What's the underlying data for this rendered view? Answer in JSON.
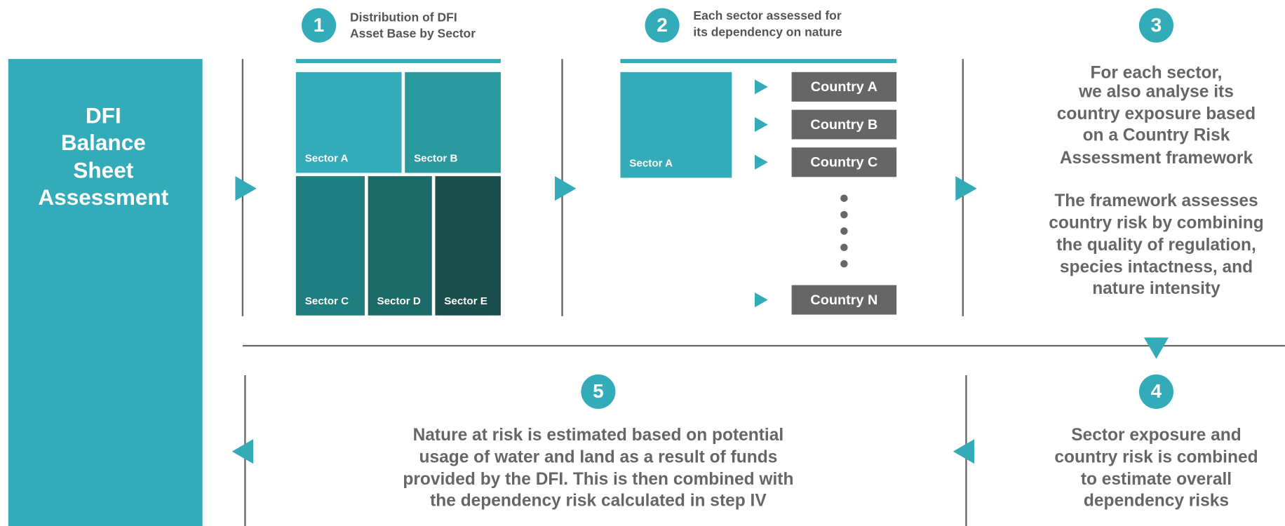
{
  "sidebar": {
    "lines": [
      "DFI",
      "Balance",
      "Sheet",
      "Assessment"
    ]
  },
  "steps": [
    {
      "number": 1,
      "title": [
        "Distribution of DFI",
        "Asset Base by Sector"
      ],
      "sectors": [
        "Sector A",
        "Sector B",
        "Sector C",
        "Sector D",
        "Sector E"
      ]
    },
    {
      "number": 2,
      "title": [
        "Each sector assessed for",
        "its dependency on nature"
      ],
      "sector": "Sector A",
      "countries": [
        "Country A",
        "Country B",
        "Country C",
        "Country N"
      ]
    },
    {
      "number": 3,
      "paragraphs": [
        [
          "For each sector,",
          "we also analyse its",
          "country exposure based",
          "on a Country Risk",
          "Assessment framework"
        ],
        [
          "The framework assesses",
          "country risk by combining",
          "the quality of regulation,",
          "species intactness, and",
          "nature intensity"
        ]
      ]
    },
    {
      "number": 4,
      "lines": [
        "Sector exposure and",
        "country risk is combined",
        "to estimate overall",
        "dependency risks"
      ]
    },
    {
      "number": 5,
      "lines": [
        "Nature at risk is estimated based on potential",
        "usage of water and land as a result of funds",
        "provided by the DFI. This is then combined with",
        "the dependency risk calculated in step IV"
      ]
    }
  ]
}
